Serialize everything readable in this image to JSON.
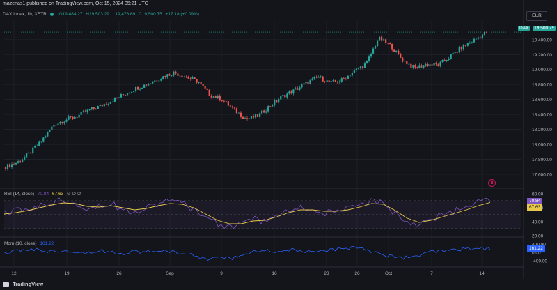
{
  "header": {
    "publish_text": "mazenas1 published on TradingView.com, Oct 15, 2024 05:21 UTC"
  },
  "legend": {
    "symbol": "DAX Index, 1h, XETR",
    "open": "O19,484.27",
    "high": "H19,503.29",
    "low": "L19,478.69",
    "close": "C19,500.75",
    "change": "+17.18 (+0.09%)"
  },
  "currency_button": "EUR",
  "price_tag": {
    "symbol": "DAX",
    "value": "19,500.75"
  },
  "rsi": {
    "label": "RSI (14, close)",
    "value": "70.84",
    "ma_value": "67.63",
    "extra": "∅ ∅ ∅",
    "axis": [
      "80.00",
      "60.00",
      "40.00",
      "20.00"
    ]
  },
  "momentum": {
    "label": "Mom (10, close)",
    "value": "161.22",
    "axis": [
      "400.00",
      "0.00",
      "-400.00"
    ]
  },
  "footer": {
    "brand": "TradingView"
  },
  "colors": {
    "up": "#26a69a",
    "down": "#ef5350",
    "rsi": "#7e57c2",
    "rsi_ma": "#e6c84a",
    "mom": "#2962ff",
    "background": "#14151a"
  },
  "icons": [
    "tradingview-logo-icon",
    "event-icon"
  ],
  "chart_data": [
    {
      "type": "candlestick",
      "title": "DAX Index, 1h, XETR",
      "ylabel": "",
      "ylim": [
        17450,
        19650
      ],
      "y_ticks": [
        "19,400.00",
        "19,200.00",
        "19,000.00",
        "18,800.00",
        "18,600.00",
        "18,400.00",
        "18,200.00",
        "18,000.00",
        "17,800.00",
        "17,600.00"
      ],
      "x_ticks": [
        "12",
        "19",
        "26",
        "Sep",
        "9",
        "16",
        "23",
        "26",
        "Oct",
        "7",
        "14"
      ],
      "closes": [
        17700,
        17760,
        17880,
        18050,
        18260,
        18330,
        18380,
        18460,
        18520,
        18600,
        18680,
        18760,
        18820,
        18900,
        18960,
        18900,
        18840,
        18660,
        18600,
        18460,
        18340,
        18380,
        18520,
        18640,
        18720,
        18820,
        18900,
        18820,
        18860,
        18980,
        19080,
        19420,
        19320,
        19130,
        19020,
        19070,
        19060,
        19180,
        19300,
        19400,
        19500
      ]
    },
    {
      "type": "line",
      "title": "RSI (14, close)",
      "ylim": [
        20,
        80
      ],
      "series": [
        {
          "name": "RSI",
          "values": [
            52,
            55,
            58,
            62,
            67,
            72,
            68,
            60,
            63,
            66,
            58,
            55,
            61,
            66,
            70,
            66,
            58,
            48,
            36,
            33,
            38,
            44,
            40,
            49,
            56,
            60,
            57,
            52,
            55,
            58,
            63,
            70,
            66,
            52,
            40,
            36,
            44,
            50,
            55,
            60,
            68,
            70.84
          ]
        },
        {
          "name": "MA",
          "values": [
            51,
            53,
            56,
            60,
            64,
            67,
            66,
            62,
            61,
            63,
            60,
            57,
            59,
            63,
            66,
            65,
            60,
            51,
            42,
            37,
            37,
            41,
            42,
            47,
            53,
            57,
            57,
            55,
            55,
            57,
            61,
            66,
            65,
            56,
            45,
            39,
            42,
            47,
            52,
            57,
            63,
            67.63
          ]
        }
      ]
    },
    {
      "type": "line",
      "title": "Mom (10, close)",
      "ylim": [
        -600,
        600
      ],
      "series": [
        {
          "name": "Mom",
          "values": [
            -60,
            40,
            150,
            110,
            30,
            120,
            60,
            -20,
            90,
            30,
            -40,
            60,
            20,
            -10,
            80,
            -50,
            -150,
            -320,
            -240,
            -300,
            -160,
            40,
            90,
            20,
            140,
            60,
            -30,
            80,
            140,
            220,
            260,
            60,
            -120,
            -220,
            -260,
            -160,
            20,
            60,
            80,
            160,
            200,
            161.22
          ]
        }
      ]
    }
  ]
}
